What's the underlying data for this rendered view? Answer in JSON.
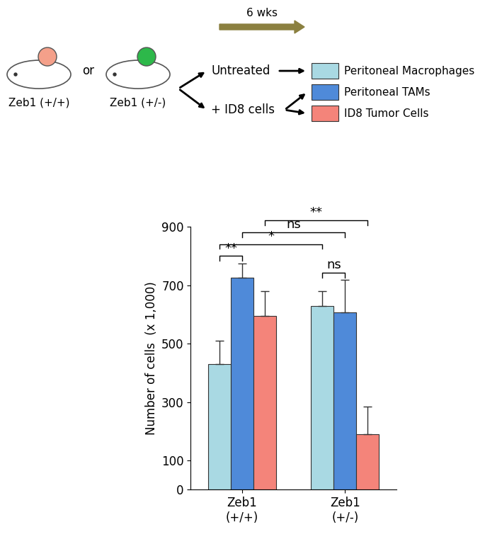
{
  "chart_data": {
    "type": "bar",
    "y_label": "Number of cells  (x 1,000)",
    "categories": [
      "Zeb1\n(+/+)",
      "Zeb1\n(+/-)"
    ],
    "series": [
      {
        "name": "Peritoneal Macrophages",
        "color": "#a9d9e3",
        "values": [
          430,
          630
        ],
        "errors": [
          80,
          50
        ]
      },
      {
        "name": "Peritoneal TAMs",
        "color": "#4f8ad9",
        "values": [
          725,
          608
        ],
        "errors": [
          50,
          110
        ]
      },
      {
        "name": "ID8 Tumor Cells",
        "color": "#f4847a",
        "values": [
          595,
          190
        ],
        "errors": [
          85,
          95
        ]
      }
    ],
    "ylim": [
      0,
      900
    ],
    "yticks": [
      0,
      100,
      300,
      500,
      700,
      900
    ],
    "comparisons": [
      {
        "a": [
          "Zeb1\n(+/+)",
          "Peritoneal Macrophages"
        ],
        "b": [
          "Zeb1\n(+/+)",
          "Peritoneal TAMs"
        ],
        "label": "**"
      },
      {
        "a": [
          "Zeb1\n(+/-)",
          "Peritoneal Macrophages"
        ],
        "b": [
          "Zeb1\n(+/-)",
          "Peritoneal TAMs"
        ],
        "label": "ns"
      },
      {
        "a": [
          "Zeb1\n(+/+)",
          "Peritoneal Macrophages"
        ],
        "b": [
          "Zeb1\n(+/-)",
          "Peritoneal Macrophages"
        ],
        "label": "*"
      },
      {
        "a": [
          "Zeb1\n(+/+)",
          "Peritoneal TAMs"
        ],
        "b": [
          "Zeb1\n(+/-)",
          "Peritoneal TAMs"
        ],
        "label": "ns"
      },
      {
        "a": [
          "Zeb1\n(+/+)",
          "ID8 Tumor Cells"
        ],
        "b": [
          "Zeb1\n(+/-)",
          "ID8 Tumor Cells"
        ],
        "label": "**"
      }
    ],
    "schematic": {
      "duration": "6 wks",
      "mouse_labels": [
        "Zeb1 (+/+)",
        "Zeb1 (+/-)"
      ],
      "joiner": "or",
      "conditions": [
        "Untreated",
        "+ ID8 cells"
      ]
    }
  }
}
